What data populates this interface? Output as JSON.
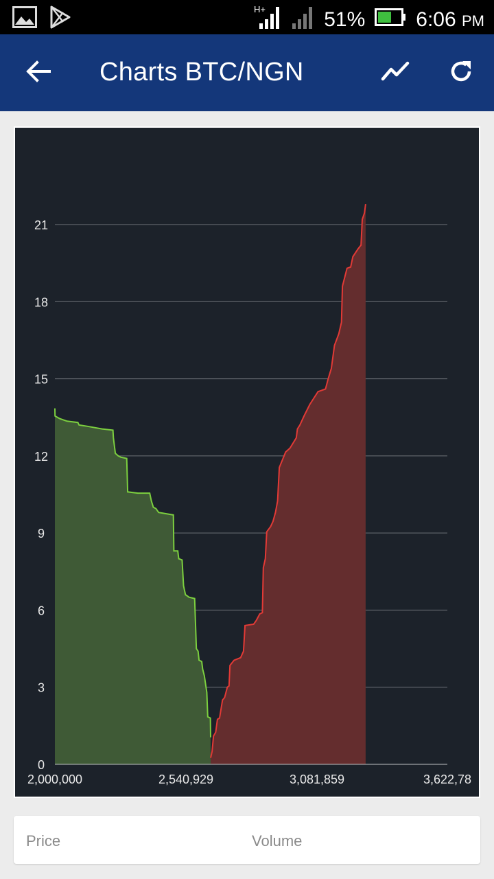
{
  "status_bar": {
    "network_label": "H+",
    "battery_pct": "51%",
    "time": "6:06",
    "ampm": "PM",
    "icons": [
      "gallery-icon",
      "play-store-icon",
      "signal-icon",
      "battery-icon"
    ]
  },
  "app_bar": {
    "title": "Charts BTC/NGN",
    "icons": [
      "back-arrow-icon",
      "trend-line-icon",
      "refresh-icon"
    ]
  },
  "chart_data": {
    "type": "area",
    "title": "",
    "xlabel": "",
    "ylabel": "",
    "xlim": [
      2000000,
      3622780
    ],
    "ylim": [
      0,
      21
    ],
    "x_ticks": [
      "2,000,000",
      "2,540,929",
      "3,081,859",
      "3,622,78"
    ],
    "x_tick_values": [
      2000000,
      2540929,
      3081859,
      3622789
    ],
    "y_ticks": [
      0,
      3,
      6,
      9,
      12,
      15,
      18,
      21
    ],
    "grid": true,
    "colors": {
      "background": "#1c222a",
      "grid": "#6e7378",
      "bids_line": "#7ccf3f",
      "bids_fill": "#3f5a36",
      "asks_line": "#e23a36",
      "asks_fill": "#642d2e"
    },
    "series": [
      {
        "side": "bids",
        "points": [
          [
            2000000,
            13.85
          ],
          [
            2000500,
            13.55
          ],
          [
            2020000,
            13.45
          ],
          [
            2050000,
            13.35
          ],
          [
            2095000,
            13.3
          ],
          [
            2100000,
            13.2
          ],
          [
            2135000,
            13.15
          ],
          [
            2195000,
            13.05
          ],
          [
            2240000,
            13.0
          ],
          [
            2242000,
            12.7
          ],
          [
            2250000,
            12.1
          ],
          [
            2262000,
            12.0
          ],
          [
            2272000,
            11.95
          ],
          [
            2297000,
            11.9
          ],
          [
            2301000,
            10.6
          ],
          [
            2343000,
            10.55
          ],
          [
            2392000,
            10.55
          ],
          [
            2399000,
            10.25
          ],
          [
            2407000,
            10.0
          ],
          [
            2418000,
            9.95
          ],
          [
            2429000,
            9.8
          ],
          [
            2490000,
            9.7
          ],
          [
            2492000,
            8.3
          ],
          [
            2508000,
            8.3
          ],
          [
            2512000,
            8.0
          ],
          [
            2526000,
            7.95
          ],
          [
            2532000,
            6.95
          ],
          [
            2540000,
            6.6
          ],
          [
            2555000,
            6.5
          ],
          [
            2578000,
            6.45
          ],
          [
            2585000,
            4.5
          ],
          [
            2592000,
            4.4
          ],
          [
            2596000,
            4.05
          ],
          [
            2607000,
            4.0
          ],
          [
            2611000,
            3.7
          ],
          [
            2618000,
            3.45
          ],
          [
            2628000,
            2.8
          ],
          [
            2632000,
            1.85
          ],
          [
            2643000,
            1.8
          ],
          [
            2644000,
            1.05
          ]
        ]
      },
      {
        "side": "asks",
        "points": [
          [
            2644000,
            0.25
          ],
          [
            2650000,
            0.5
          ],
          [
            2656000,
            1.1
          ],
          [
            2665000,
            1.25
          ],
          [
            2672000,
            1.75
          ],
          [
            2681000,
            1.8
          ],
          [
            2693000,
            2.5
          ],
          [
            2702000,
            2.6
          ],
          [
            2713000,
            3.0
          ],
          [
            2720000,
            3.05
          ],
          [
            2724000,
            3.85
          ],
          [
            2741000,
            4.05
          ],
          [
            2768000,
            4.15
          ],
          [
            2780000,
            4.4
          ],
          [
            2786000,
            5.4
          ],
          [
            2822000,
            5.45
          ],
          [
            2833000,
            5.6
          ],
          [
            2847000,
            5.85
          ],
          [
            2858000,
            5.9
          ],
          [
            2862000,
            7.65
          ],
          [
            2870000,
            8.0
          ],
          [
            2876000,
            9.05
          ],
          [
            2892000,
            9.25
          ],
          [
            2902000,
            9.45
          ],
          [
            2912000,
            9.8
          ],
          [
            2921000,
            10.25
          ],
          [
            2928000,
            11.55
          ],
          [
            2941000,
            11.85
          ],
          [
            2954000,
            12.15
          ],
          [
            2972000,
            12.3
          ],
          [
            2998000,
            12.7
          ],
          [
            3003000,
            13.05
          ],
          [
            3013000,
            13.2
          ],
          [
            3030000,
            13.55
          ],
          [
            3054000,
            14.0
          ],
          [
            3088000,
            14.5
          ],
          [
            3119000,
            14.6
          ],
          [
            3130000,
            15.0
          ],
          [
            3143000,
            15.4
          ],
          [
            3156000,
            16.3
          ],
          [
            3174000,
            16.75
          ],
          [
            3185000,
            17.2
          ],
          [
            3189000,
            18.6
          ],
          [
            3208000,
            19.3
          ],
          [
            3223000,
            19.35
          ],
          [
            3232000,
            19.75
          ],
          [
            3253000,
            20.05
          ],
          [
            3266000,
            20.2
          ],
          [
            3271000,
            21.2
          ],
          [
            3280000,
            21.45
          ],
          [
            3285000,
            21.8
          ]
        ]
      }
    ]
  },
  "table": {
    "col_price": "Price",
    "col_volume": "Volume"
  }
}
